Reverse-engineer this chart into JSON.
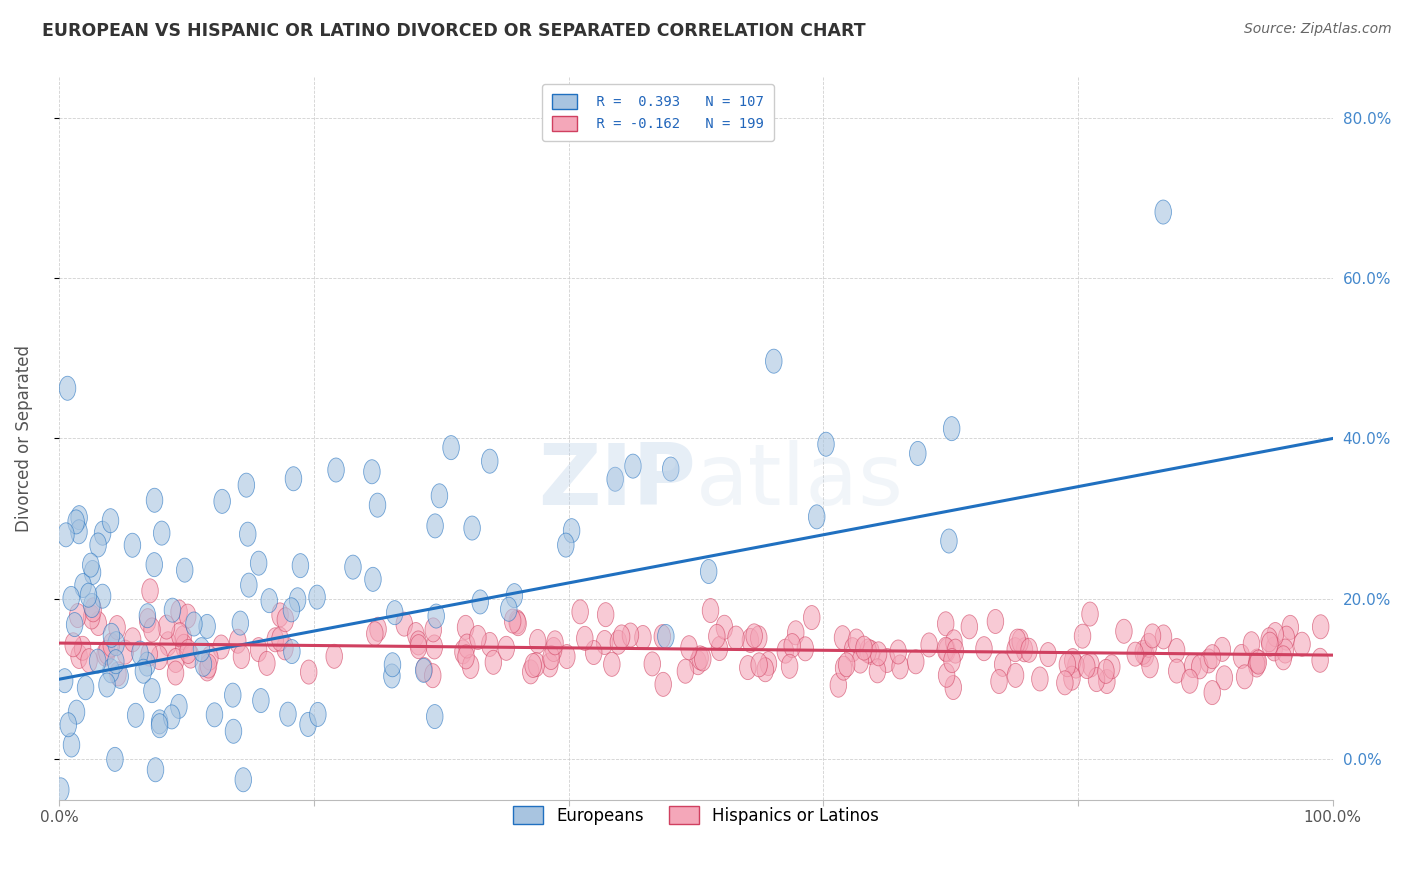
{
  "title": "EUROPEAN VS HISPANIC OR LATINO DIVORCED OR SEPARATED CORRELATION CHART",
  "source": "Source: ZipAtlas.com",
  "ylabel": "Divorced or Separated",
  "xlabel": "",
  "watermark_zip": "ZIP",
  "watermark_atlas": "atlas",
  "european_R": 0.393,
  "european_N": 107,
  "hispanic_R": -0.162,
  "hispanic_N": 199,
  "xlim": [
    0.0,
    1.0
  ],
  "ylim": [
    -0.05,
    0.85
  ],
  "xticks": [
    0.0,
    0.2,
    0.4,
    0.6,
    0.8,
    1.0
  ],
  "yticks": [
    0.0,
    0.2,
    0.4,
    0.6,
    0.8
  ],
  "xticklabels": [
    "0.0%",
    "",
    "",
    "",
    "",
    "100.0%"
  ],
  "yticklabels": [
    "",
    "20.0%",
    "40.0%",
    "60.0%",
    "80.0%"
  ],
  "right_yticklabels": [
    "",
    "20.0%",
    "40.0%",
    "60.0%",
    "80.0%"
  ],
  "background_color": "#ffffff",
  "european_color": "#a8c4e0",
  "hispanic_color": "#f4a7b9",
  "european_line_color": "#2070c0",
  "hispanic_line_color": "#d04060",
  "legend_label_european": "Europeans",
  "legend_label_hispanic": "Hispanics or Latinos",
  "title_color": "#333333",
  "source_color": "#666666",
  "grid_color": "#cccccc",
  "seed": 42,
  "eu_line_x0": 0.0,
  "eu_line_y0": 0.1,
  "eu_line_x1": 1.0,
  "eu_line_y1": 0.4,
  "hi_line_x0": 0.0,
  "hi_line_y0": 0.145,
  "hi_line_x1": 1.0,
  "hi_line_y1": 0.13
}
